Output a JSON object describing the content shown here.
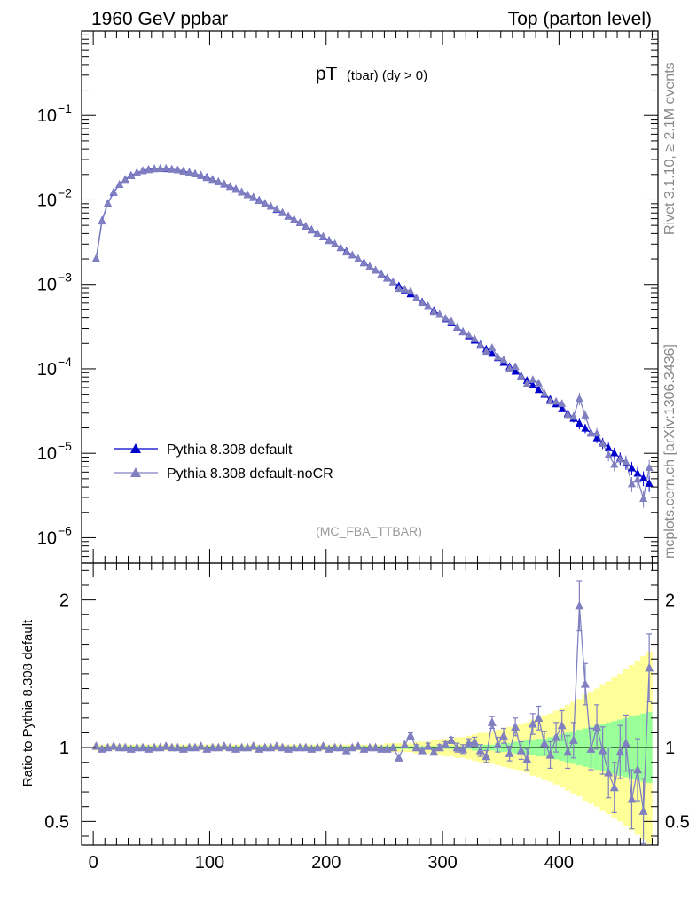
{
  "header": {
    "left": "1960 GeV ppbar",
    "right": "Top (parton level)"
  },
  "side_texts": {
    "rivet": "Rivet 3.1.10, ≥ 2.1M events",
    "mcplots": "mcplots.cern.ch [arXiv:1306.3436]"
  },
  "chart_data": {
    "type": "line",
    "title_main": "pT",
    "title_sub": "(tbar) (dy > 0)",
    "analysis_tag": "(MC_FBA_TTBAR)",
    "xlim": [
      -10,
      485
    ],
    "xticks": [
      0,
      100,
      200,
      300,
      400
    ],
    "legend_placement": "bottom-left",
    "main": {
      "yscale": "log",
      "ylim_log10": [
        -6.3,
        0.0
      ],
      "yticks_exp": [
        -6,
        -5,
        -4,
        -3,
        -2,
        -1
      ],
      "yticks_labels": [
        "10",
        "10",
        "10",
        "10",
        "10",
        "10"
      ],
      "yticks_sup": [
        "−6",
        "−5",
        "−4",
        "−3",
        "−2",
        "−1"
      ]
    },
    "ratio": {
      "ylabel": "Ratio to Pythia 8.308 default",
      "ylim": [
        0.34,
        2.25
      ],
      "yticks": [
        0.5,
        1,
        2
      ],
      "yticks_labels": [
        "0.5",
        "1",
        "2"
      ]
    },
    "series": [
      {
        "name": "Pythia 8.308 default",
        "color": "#0000cc",
        "x": [
          2.5,
          7.5,
          12.5,
          17.5,
          22.5,
          27.5,
          32.5,
          37.5,
          42.5,
          47.5,
          52.5,
          57.5,
          62.5,
          67.5,
          72.5,
          77.5,
          82.5,
          87.5,
          92.5,
          97.5,
          102.5,
          107.5,
          112.5,
          117.5,
          122.5,
          127.5,
          132.5,
          137.5,
          142.5,
          147.5,
          152.5,
          157.5,
          162.5,
          167.5,
          172.5,
          177.5,
          182.5,
          187.5,
          192.5,
          197.5,
          202.5,
          207.5,
          212.5,
          217.5,
          222.5,
          227.5,
          232.5,
          237.5,
          242.5,
          247.5,
          252.5,
          257.5,
          262.5,
          267.5,
          272.5,
          277.5,
          282.5,
          287.5,
          292.5,
          297.5,
          302.5,
          307.5,
          312.5,
          317.5,
          322.5,
          327.5,
          332.5,
          337.5,
          342.5,
          347.5,
          352.5,
          357.5,
          362.5,
          367.5,
          372.5,
          377.5,
          382.5,
          387.5,
          392.5,
          397.5,
          402.5,
          407.5,
          412.5,
          417.5,
          422.5,
          427.5,
          432.5,
          437.5,
          442.5,
          447.5,
          452.5,
          457.5,
          462.5,
          467.5,
          472.5,
          477.5
        ],
        "y": [
          0.00201,
          0.00567,
          0.00907,
          0.0123,
          0.0152,
          0.0175,
          0.0195,
          0.0211,
          0.0222,
          0.0229,
          0.0234,
          0.0235,
          0.0234,
          0.0231,
          0.0226,
          0.022,
          0.0212,
          0.0204,
          0.0195,
          0.0185,
          0.0175,
          0.0164,
          0.0154,
          0.0144,
          0.0134,
          0.0124,
          0.0115,
          0.0107,
          0.00989,
          0.00911,
          0.00838,
          0.00769,
          0.00705,
          0.00643,
          0.00588,
          0.00536,
          0.00488,
          0.00443,
          0.00403,
          0.00366,
          0.00332,
          0.00301,
          0.00272,
          0.00246,
          0.00222,
          0.002,
          0.00181,
          0.00163,
          0.00147,
          0.00132,
          0.00119,
          0.00107,
          0.00096,
          0.00086,
          0.00077,
          0.00069,
          0.00062,
          0.00055,
          0.00049,
          0.00044,
          0.00039,
          0.00035,
          0.00031,
          0.000275,
          0.000245,
          0.000218,
          0.000193,
          0.000171,
          0.000152,
          0.000135,
          0.000119,
          0.000106,
          9.35e-05,
          8.25e-05,
          7.28e-05,
          6.42e-05,
          5.66e-05,
          4.98e-05,
          4.37e-05,
          3.84e-05,
          3.37e-05,
          2.96e-05,
          2.59e-05,
          2.27e-05,
          1.98e-05,
          1.74e-05,
          1.52e-05,
          1.33e-05,
          1.16e-05,
          1.01e-05,
          8.8e-06,
          7.7e-06,
          6.7e-06,
          5.8e-06,
          5.1e-06,
          4.4e-06
        ]
      },
      {
        "name": "Pythia 8.308 default-noCR",
        "color": "#8080c0",
        "x": [
          2.5,
          7.5,
          12.5,
          17.5,
          22.5,
          27.5,
          32.5,
          37.5,
          42.5,
          47.5,
          52.5,
          57.5,
          62.5,
          67.5,
          72.5,
          77.5,
          82.5,
          87.5,
          92.5,
          97.5,
          102.5,
          107.5,
          112.5,
          117.5,
          122.5,
          127.5,
          132.5,
          137.5,
          142.5,
          147.5,
          152.5,
          157.5,
          162.5,
          167.5,
          172.5,
          177.5,
          182.5,
          187.5,
          192.5,
          197.5,
          202.5,
          207.5,
          212.5,
          217.5,
          222.5,
          227.5,
          232.5,
          237.5,
          242.5,
          247.5,
          252.5,
          257.5,
          262.5,
          267.5,
          272.5,
          277.5,
          282.5,
          287.5,
          292.5,
          297.5,
          302.5,
          307.5,
          312.5,
          317.5,
          322.5,
          327.5,
          332.5,
          337.5,
          342.5,
          347.5,
          352.5,
          357.5,
          362.5,
          367.5,
          372.5,
          377.5,
          382.5,
          387.5,
          392.5,
          397.5,
          402.5,
          407.5,
          412.5,
          417.5,
          422.5,
          427.5,
          432.5,
          437.5,
          442.5,
          447.5,
          452.5,
          457.5,
          462.5,
          467.5,
          472.5,
          477.5
        ],
        "ratio": [
          1.01,
          0.99,
          1.0,
          1.01,
          1.0,
          1.0,
          0.99,
          1.0,
          1.0,
          0.99,
          1.0,
          1.0,
          1.01,
          1.0,
          1.0,
          0.99,
          1.0,
          1.0,
          1.01,
          0.99,
          1.0,
          1.0,
          1.01,
          1.0,
          0.99,
          1.0,
          1.0,
          1.01,
          0.99,
          1.0,
          1.0,
          1.01,
          1.0,
          0.99,
          1.0,
          1.0,
          1.0,
          0.99,
          1.0,
          1.01,
          0.99,
          1.0,
          1.0,
          0.98,
          1.0,
          1.01,
          0.99,
          1.0,
          1.0,
          0.99,
          0.99,
          1.0,
          0.93,
          1.02,
          1.08,
          1.0,
          0.98,
          1.01,
          0.97,
          1.0,
          1.02,
          1.05,
          1.0,
          0.99,
          1.03,
          1.04,
          0.98,
          0.94,
          1.17,
          1.02,
          1.08,
          0.96,
          1.14,
          0.98,
          0.92,
          1.16,
          1.2,
          1.03,
          0.95,
          1.07,
          1.15,
          0.97,
          1.05,
          1.96,
          1.43,
          0.99,
          1.14,
          0.98,
          0.83,
          0.73,
          0.97,
          1.03,
          0.65,
          0.85,
          0.57,
          1.54,
          1.44
        ],
        "ratio_err": [
          0.01,
          0.01,
          0.01,
          0.01,
          0.01,
          0.01,
          0.01,
          0.01,
          0.01,
          0.01,
          0.01,
          0.01,
          0.01,
          0.01,
          0.01,
          0.01,
          0.01,
          0.01,
          0.01,
          0.01,
          0.01,
          0.01,
          0.01,
          0.01,
          0.01,
          0.01,
          0.01,
          0.01,
          0.01,
          0.01,
          0.01,
          0.01,
          0.01,
          0.01,
          0.01,
          0.01,
          0.01,
          0.01,
          0.01,
          0.01,
          0.01,
          0.01,
          0.01,
          0.01,
          0.01,
          0.01,
          0.01,
          0.01,
          0.01,
          0.01,
          0.01,
          0.01,
          0.01,
          0.01,
          0.02,
          0.02,
          0.02,
          0.02,
          0.02,
          0.02,
          0.02,
          0.02,
          0.03,
          0.03,
          0.03,
          0.03,
          0.04,
          0.04,
          0.04,
          0.05,
          0.05,
          0.05,
          0.06,
          0.06,
          0.07,
          0.07,
          0.08,
          0.08,
          0.09,
          0.1,
          0.1,
          0.11,
          0.12,
          0.17,
          0.14,
          0.14,
          0.15,
          0.16,
          0.17,
          0.17,
          0.18,
          0.19,
          0.2,
          0.21,
          0.22,
          0.23,
          0.24
        ],
        "band_green": [
          0.01,
          0.01,
          0.01,
          0.01,
          0.01,
          0.01,
          0.01,
          0.01,
          0.01,
          0.01,
          0.01,
          0.01,
          0.01,
          0.01,
          0.01,
          0.01,
          0.01,
          0.01,
          0.01,
          0.01,
          0.01,
          0.01,
          0.01,
          0.01,
          0.01,
          0.01,
          0.01,
          0.01,
          0.01,
          0.01,
          0.01,
          0.01,
          0.01,
          0.01,
          0.01,
          0.01,
          0.01,
          0.01,
          0.01,
          0.01,
          0.01,
          0.01,
          0.01,
          0.01,
          0.01,
          0.01,
          0.01,
          0.01,
          0.01,
          0.01,
          0.01,
          0.01,
          0.01,
          0.01,
          0.01,
          0.01,
          0.01,
          0.01,
          0.01,
          0.01,
          0.01,
          0.01,
          0.01,
          0.01,
          0.01,
          0.02,
          0.02,
          0.02,
          0.02,
          0.03,
          0.03,
          0.03,
          0.04,
          0.04,
          0.05,
          0.05,
          0.06,
          0.06,
          0.07,
          0.08,
          0.09,
          0.1,
          0.11,
          0.12,
          0.13,
          0.14,
          0.15,
          0.16,
          0.17,
          0.18,
          0.19,
          0.2,
          0.21,
          0.22,
          0.23,
          0.24,
          0.25
        ],
        "band_yellow": [
          0.02,
          0.02,
          0.02,
          0.02,
          0.02,
          0.02,
          0.02,
          0.02,
          0.02,
          0.02,
          0.02,
          0.02,
          0.02,
          0.02,
          0.02,
          0.02,
          0.02,
          0.02,
          0.02,
          0.02,
          0.02,
          0.02,
          0.02,
          0.02,
          0.02,
          0.02,
          0.02,
          0.02,
          0.02,
          0.02,
          0.02,
          0.02,
          0.02,
          0.02,
          0.02,
          0.02,
          0.02,
          0.02,
          0.02,
          0.02,
          0.02,
          0.02,
          0.02,
          0.02,
          0.02,
          0.02,
          0.02,
          0.02,
          0.02,
          0.02,
          0.03,
          0.03,
          0.03,
          0.03,
          0.03,
          0.04,
          0.04,
          0.04,
          0.05,
          0.05,
          0.06,
          0.06,
          0.07,
          0.07,
          0.08,
          0.09,
          0.1,
          0.1,
          0.11,
          0.12,
          0.13,
          0.14,
          0.15,
          0.16,
          0.17,
          0.19,
          0.2,
          0.22,
          0.23,
          0.25,
          0.27,
          0.29,
          0.31,
          0.33,
          0.36,
          0.38,
          0.4,
          0.43,
          0.45,
          0.48,
          0.5,
          0.53,
          0.56,
          0.59,
          0.62,
          0.65,
          0.68
        ]
      }
    ]
  }
}
